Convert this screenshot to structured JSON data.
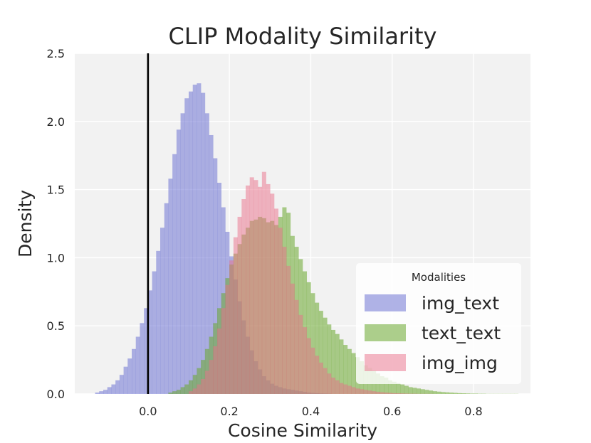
{
  "chart_data": {
    "type": "histogram",
    "title": "CLIP Modality Similarity",
    "xlabel": "Cosine Similarity",
    "ylabel": "Density",
    "xlim": [
      -0.18,
      0.94
    ],
    "ylim": [
      0,
      2.5
    ],
    "xticks": [
      "0.0",
      "0.2",
      "0.4",
      "0.6",
      "0.8"
    ],
    "xtick_values": [
      0.0,
      0.2,
      0.4,
      0.6,
      0.8
    ],
    "yticks": [
      "0.0",
      "0.5",
      "1.0",
      "1.5",
      "2.0",
      "2.5"
    ],
    "ytick_values": [
      0.0,
      0.5,
      1.0,
      1.5,
      2.0,
      2.5
    ],
    "grid": true,
    "background": "#f2f2f2",
    "legend": {
      "title": "Modalities",
      "placement": "lower-right"
    },
    "reference_line": {
      "x": 0.0,
      "color": "#000000"
    },
    "bin_width": 0.01,
    "series": [
      {
        "name": "img_text",
        "color": "#6f74d4",
        "opacity": 0.55,
        "x_start": -0.13,
        "densities": [
          0.01,
          0.02,
          0.03,
          0.05,
          0.07,
          0.1,
          0.14,
          0.2,
          0.26,
          0.33,
          0.42,
          0.52,
          0.63,
          0.76,
          0.9,
          1.05,
          1.22,
          1.4,
          1.58,
          1.76,
          1.94,
          2.06,
          2.17,
          2.22,
          2.27,
          2.28,
          2.21,
          2.06,
          1.9,
          1.73,
          1.55,
          1.37,
          1.19,
          1.01,
          0.84,
          0.68,
          0.54,
          0.42,
          0.32,
          0.24,
          0.18,
          0.13,
          0.1,
          0.075,
          0.06,
          0.05,
          0.04,
          0.035,
          0.03,
          0.025,
          0.02,
          0.015,
          0.01,
          0.008,
          0.006,
          0.004,
          0.003,
          0.002
        ]
      },
      {
        "name": "text_text",
        "color": "#6aa82e",
        "opacity": 0.55,
        "x_start": 0.05,
        "densities": [
          0.01,
          0.02,
          0.03,
          0.05,
          0.07,
          0.1,
          0.14,
          0.19,
          0.25,
          0.33,
          0.42,
          0.52,
          0.63,
          0.74,
          0.85,
          0.95,
          1.03,
          1.1,
          1.17,
          1.22,
          1.27,
          1.28,
          1.3,
          1.29,
          1.26,
          1.27,
          1.24,
          1.3,
          1.37,
          1.33,
          1.16,
          1.08,
          0.99,
          0.9,
          0.82,
          0.74,
          0.67,
          0.61,
          0.56,
          0.51,
          0.47,
          0.44,
          0.4,
          0.36,
          0.33,
          0.3,
          0.27,
          0.24,
          0.21,
          0.19,
          0.17,
          0.15,
          0.13,
          0.12,
          0.1,
          0.09,
          0.08,
          0.07,
          0.06,
          0.05,
          0.045,
          0.04,
          0.035,
          0.03,
          0.025,
          0.02,
          0.017,
          0.014,
          0.012,
          0.01,
          0.008,
          0.006,
          0.005,
          0.004,
          0.003,
          0.003,
          0.002,
          0.002,
          0.001,
          0.001,
          0.001,
          0.001,
          0.001,
          0.001,
          0.001,
          0.001
        ]
      },
      {
        "name": "img_img",
        "color": "#e9708a",
        "opacity": 0.5,
        "x_start": 0.1,
        "densities": [
          0.02,
          0.04,
          0.07,
          0.11,
          0.17,
          0.25,
          0.35,
          0.48,
          0.63,
          0.8,
          0.98,
          1.15,
          1.3,
          1.43,
          1.53,
          1.59,
          1.57,
          1.52,
          1.63,
          1.54,
          1.47,
          1.36,
          1.22,
          1.08,
          0.94,
          0.81,
          0.69,
          0.58,
          0.49,
          0.41,
          0.34,
          0.28,
          0.23,
          0.19,
          0.15,
          0.12,
          0.1,
          0.08,
          0.07,
          0.06,
          0.05,
          0.04,
          0.035,
          0.03,
          0.025,
          0.02,
          0.016,
          0.013,
          0.01,
          0.008,
          0.006,
          0.005,
          0.004,
          0.003,
          0.002,
          0.002,
          0.001,
          0.001,
          0.001,
          0.001
        ]
      }
    ]
  }
}
